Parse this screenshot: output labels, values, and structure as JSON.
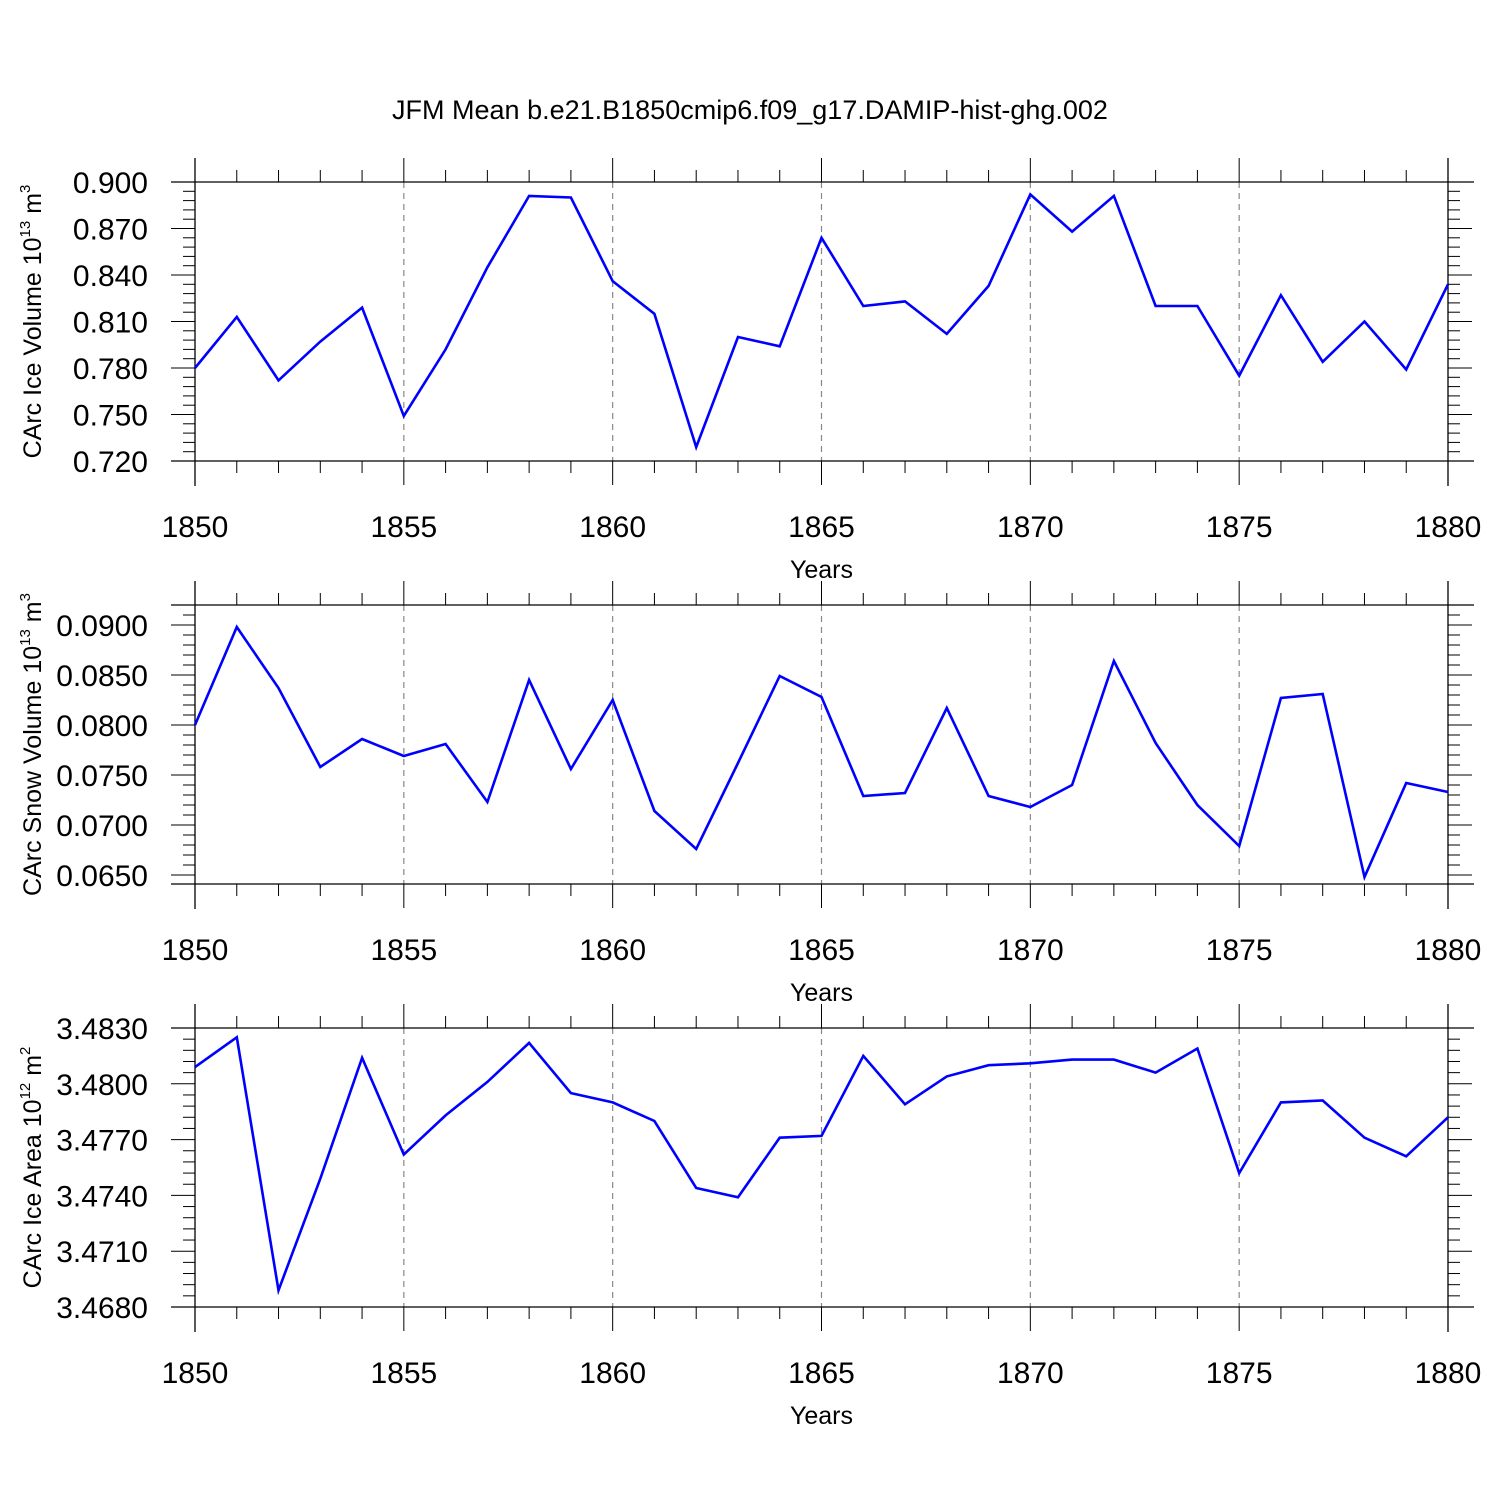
{
  "title": "JFM Mean b.e21.B1850cmip6.f09_g17.DAMIP-hist-ghg.002",
  "chart_data": [
    {
      "type": "line",
      "xlabel": "Years",
      "ylabel": {
        "main": "CArc Ice Volume 10",
        "exp": "13",
        "unit": " m",
        "unit_exp": "3"
      },
      "xlim": [
        1850,
        1880
      ],
      "ylim": [
        0.72,
        0.9
      ],
      "yticks": [
        "0.720",
        "0.750",
        "0.780",
        "0.810",
        "0.840",
        "0.870",
        "0.900"
      ],
      "xticks": [
        "1850",
        "1855",
        "1860",
        "1865",
        "1870",
        "1875",
        "1880"
      ],
      "color": "#0000ff",
      "x": [
        1850,
        1851,
        1852,
        1853,
        1854,
        1855,
        1856,
        1857,
        1858,
        1859,
        1860,
        1861,
        1862,
        1863,
        1864,
        1865,
        1866,
        1867,
        1868,
        1869,
        1870,
        1871,
        1872,
        1873,
        1874,
        1875,
        1876,
        1877,
        1878,
        1879,
        1880
      ],
      "values": [
        0.78,
        0.813,
        0.772,
        0.797,
        0.819,
        0.749,
        0.792,
        0.845,
        0.891,
        0.89,
        0.836,
        0.815,
        0.729,
        0.8,
        0.794,
        0.864,
        0.82,
        0.823,
        0.802,
        0.833,
        0.892,
        0.868,
        0.891,
        0.82,
        0.82,
        0.775,
        0.827,
        0.784,
        0.81,
        0.779,
        0.834
      ]
    },
    {
      "type": "line",
      "xlabel": "Years",
      "ylabel": {
        "main": "CArc Snow Volume 10",
        "exp": "13",
        "unit": " m",
        "unit_exp": "3"
      },
      "xlim": [
        1850,
        1880
      ],
      "ylim": [
        0.0641,
        0.092
      ],
      "yticks": [
        "0.0650",
        "0.0700",
        "0.0750",
        "0.0800",
        "0.0850",
        "0.0900"
      ],
      "xticks": [
        "1850",
        "1855",
        "1860",
        "1865",
        "1870",
        "1875",
        "1880"
      ],
      "color": "#0000ff",
      "x": [
        1850,
        1851,
        1852,
        1853,
        1854,
        1855,
        1856,
        1857,
        1858,
        1859,
        1860,
        1861,
        1862,
        1863,
        1864,
        1865,
        1866,
        1867,
        1868,
        1869,
        1870,
        1871,
        1872,
        1873,
        1874,
        1875,
        1876,
        1877,
        1878,
        1879,
        1880
      ],
      "values": [
        0.08,
        0.0898,
        0.0837,
        0.0758,
        0.0786,
        0.0769,
        0.0781,
        0.0723,
        0.0845,
        0.0756,
        0.0825,
        0.0714,
        0.0676,
        0.0762,
        0.0849,
        0.0828,
        0.0729,
        0.0732,
        0.0817,
        0.0729,
        0.0718,
        0.074,
        0.0864,
        0.0782,
        0.072,
        0.0679,
        0.0827,
        0.0831,
        0.0648,
        0.0742,
        0.0733
      ]
    },
    {
      "type": "line",
      "xlabel": "Years",
      "ylabel": {
        "main": "CArc Ice Area 10",
        "exp": "12",
        "unit": " m",
        "unit_exp": "2"
      },
      "xlim": [
        1850,
        1880
      ],
      "ylim": [
        3.468,
        3.483
      ],
      "yticks": [
        "3.4680",
        "3.4710",
        "3.4740",
        "3.4770",
        "3.4800",
        "3.4830"
      ],
      "xticks": [
        "1850",
        "1855",
        "1860",
        "1865",
        "1870",
        "1875",
        "1880"
      ],
      "color": "#0000ff",
      "x": [
        1850,
        1851,
        1852,
        1853,
        1854,
        1855,
        1856,
        1857,
        1858,
        1859,
        1860,
        1861,
        1862,
        1863,
        1864,
        1865,
        1866,
        1867,
        1868,
        1869,
        1870,
        1871,
        1872,
        1873,
        1874,
        1875,
        1876,
        1877,
        1878,
        1879,
        1880
      ],
      "values": [
        3.4809,
        3.4825,
        3.4689,
        3.4749,
        3.4814,
        3.4762,
        3.4783,
        3.4801,
        3.4822,
        3.4795,
        3.479,
        3.478,
        3.4744,
        3.4739,
        3.4771,
        3.4772,
        3.4815,
        3.4789,
        3.4804,
        3.481,
        3.4811,
        3.4813,
        3.4813,
        3.4806,
        3.4819,
        3.4752,
        3.479,
        3.4791,
        3.4771,
        3.4761,
        3.4782
      ]
    }
  ]
}
